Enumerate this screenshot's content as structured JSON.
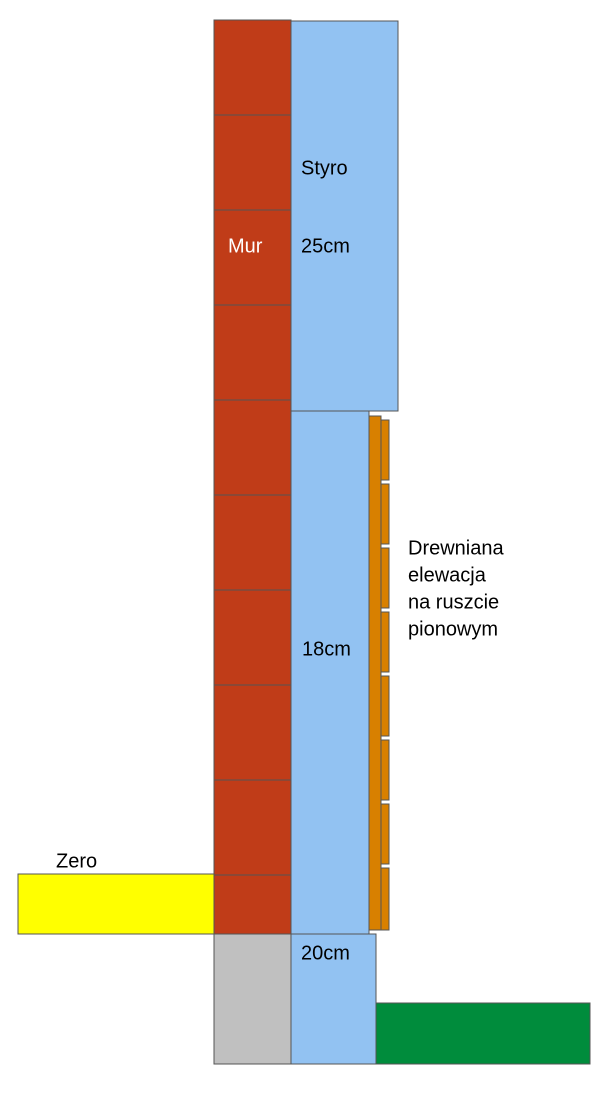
{
  "labels": {
    "insulation_top": "Styro",
    "insulation_top_thickness": "25cm",
    "wall": "Mur",
    "cladding": [
      "Drewniana",
      "elewacja",
      "na ruszcie",
      "pionowym"
    ],
    "insulation_middle_thickness": "18cm",
    "ground_level": "Zero",
    "insulation_bottom_thickness": "20cm"
  }
}
